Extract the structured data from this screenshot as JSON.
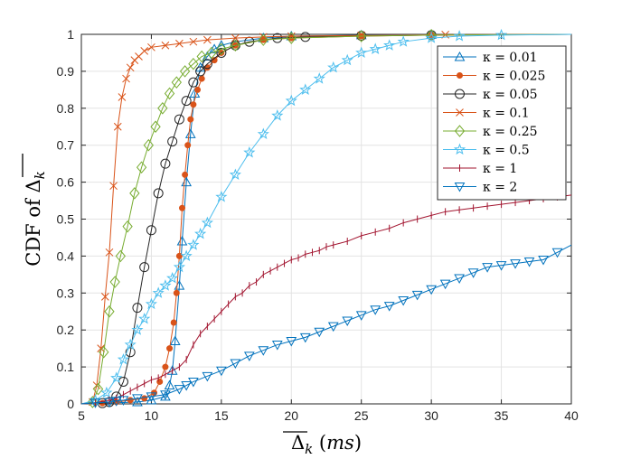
{
  "chart_data": {
    "type": "line",
    "title": "",
    "xlabel": "Δ_k (ms)",
    "ylabel": "CDF of Δ_k",
    "xlim": [
      5,
      40
    ],
    "ylim": [
      0,
      1
    ],
    "xticks": [
      5,
      10,
      15,
      20,
      25,
      30,
      35,
      40
    ],
    "yticks": [
      0,
      0.1,
      0.2,
      0.3,
      0.4,
      0.5,
      0.6,
      0.7,
      0.8,
      0.9,
      1
    ],
    "xtick_labels": [
      "5",
      "10",
      "15",
      "20",
      "25",
      "30",
      "35",
      "40"
    ],
    "ytick_labels": [
      "0",
      "0.1",
      "0.2",
      "0.3",
      "0.4",
      "0.5",
      "0.6",
      "0.7",
      "0.8",
      "0.9",
      "1"
    ],
    "grid": true,
    "legend_position": "top-right",
    "series": [
      {
        "name": "κ = 0.01",
        "color": "#0072BD",
        "marker": "triangle-up",
        "x": [
          5,
          9,
          10,
          11,
          11.3,
          11.5,
          11.7,
          12,
          12.2,
          12.5,
          12.8,
          13.1,
          13.5,
          14,
          14.5,
          15,
          16,
          18,
          20,
          25,
          30,
          40
        ],
        "y": [
          0,
          0.005,
          0.01,
          0.02,
          0.05,
          0.09,
          0.17,
          0.32,
          0.44,
          0.6,
          0.73,
          0.84,
          0.91,
          0.94,
          0.96,
          0.97,
          0.98,
          0.99,
          0.995,
          0.998,
          0.999,
          1.0
        ]
      },
      {
        "name": "κ = 0.025",
        "color": "#D95319",
        "marker": "dot",
        "x": [
          5,
          6.5,
          7.5,
          8.5,
          9.5,
          10.2,
          10.6,
          11,
          11.3,
          11.6,
          11.8,
          12,
          12.2,
          12.4,
          12.6,
          12.8,
          13,
          13.3,
          13.6,
          14,
          14.5,
          15,
          16,
          18,
          20,
          25,
          30,
          40
        ],
        "y": [
          0,
          0.002,
          0.005,
          0.01,
          0.015,
          0.03,
          0.06,
          0.1,
          0.15,
          0.22,
          0.3,
          0.4,
          0.53,
          0.62,
          0.7,
          0.77,
          0.81,
          0.85,
          0.88,
          0.91,
          0.93,
          0.95,
          0.97,
          0.985,
          0.99,
          0.995,
          0.998,
          1.0
        ]
      },
      {
        "name": "κ = 0.05",
        "color": "#262626",
        "marker": "circle",
        "x": [
          5,
          6.5,
          7,
          7.5,
          8,
          8.5,
          9,
          9.5,
          10,
          10.5,
          11,
          11.5,
          12,
          12.5,
          13,
          13.5,
          14,
          15,
          16,
          17,
          19,
          21,
          25,
          30,
          40
        ],
        "y": [
          0,
          0.002,
          0.005,
          0.02,
          0.06,
          0.14,
          0.26,
          0.37,
          0.47,
          0.57,
          0.65,
          0.71,
          0.77,
          0.82,
          0.87,
          0.9,
          0.92,
          0.95,
          0.97,
          0.98,
          0.99,
          0.993,
          0.996,
          0.998,
          1.0
        ]
      },
      {
        "name": "κ = 0.1",
        "color": "#D95319",
        "marker": "x",
        "x": [
          5,
          5.8,
          6.1,
          6.4,
          6.7,
          7,
          7.3,
          7.6,
          7.9,
          8.2,
          8.5,
          8.8,
          9.1,
          9.5,
          10,
          11,
          12,
          13,
          14,
          16,
          18,
          20,
          25,
          31,
          40
        ],
        "y": [
          0,
          0.005,
          0.05,
          0.15,
          0.29,
          0.41,
          0.59,
          0.75,
          0.83,
          0.88,
          0.91,
          0.93,
          0.94,
          0.955,
          0.965,
          0.97,
          0.975,
          0.98,
          0.985,
          0.99,
          0.993,
          0.995,
          0.997,
          0.999,
          1.0
        ]
      },
      {
        "name": "κ = 0.25",
        "color": "#77AC30",
        "marker": "diamond",
        "x": [
          5,
          5.8,
          6.2,
          6.6,
          7,
          7.4,
          7.8,
          8.3,
          8.8,
          9.3,
          9.8,
          10.3,
          10.8,
          11.3,
          11.8,
          12.4,
          13,
          13.6,
          14.3,
          15,
          16,
          18,
          20,
          25,
          30,
          40
        ],
        "y": [
          0,
          0.005,
          0.04,
          0.14,
          0.25,
          0.33,
          0.4,
          0.48,
          0.57,
          0.64,
          0.7,
          0.75,
          0.8,
          0.84,
          0.87,
          0.9,
          0.92,
          0.94,
          0.95,
          0.96,
          0.97,
          0.985,
          0.99,
          0.995,
          0.998,
          1.0
        ]
      },
      {
        "name": "κ = 0.5",
        "color": "#4DBEEE",
        "marker": "star",
        "x": [
          5,
          6,
          6.8,
          7.5,
          8,
          8.5,
          9,
          9.5,
          10,
          10.5,
          11,
          11.5,
          12,
          12.5,
          13,
          13.5,
          14,
          15,
          16,
          17,
          18,
          19,
          20,
          21,
          22,
          23,
          24,
          25,
          26,
          27,
          28,
          30,
          32,
          35,
          40
        ],
        "y": [
          0,
          0.01,
          0.03,
          0.07,
          0.12,
          0.16,
          0.2,
          0.23,
          0.27,
          0.3,
          0.32,
          0.34,
          0.37,
          0.4,
          0.43,
          0.46,
          0.49,
          0.56,
          0.62,
          0.68,
          0.73,
          0.78,
          0.82,
          0.85,
          0.88,
          0.91,
          0.93,
          0.95,
          0.96,
          0.97,
          0.98,
          0.99,
          0.995,
          0.998,
          1.0
        ]
      },
      {
        "name": "κ = 1",
        "color": "#A2142F",
        "marker": "plus",
        "x": [
          5,
          6,
          7,
          7.5,
          8,
          8.5,
          9,
          9.5,
          10,
          10.5,
          11,
          11.5,
          12,
          12.5,
          13,
          13.5,
          14,
          14.5,
          15,
          15.5,
          16,
          16.5,
          17,
          17.5,
          18,
          18.5,
          19,
          19.5,
          20,
          20.5,
          21,
          21.5,
          22,
          22.5,
          23,
          24,
          25,
          26,
          27,
          28,
          29,
          30,
          31,
          32,
          33,
          34,
          35,
          36,
          37,
          38,
          39,
          40
        ],
        "y": [
          0,
          0.003,
          0.01,
          0.015,
          0.025,
          0.035,
          0.045,
          0.055,
          0.065,
          0.07,
          0.08,
          0.09,
          0.1,
          0.12,
          0.16,
          0.19,
          0.21,
          0.23,
          0.25,
          0.27,
          0.29,
          0.3,
          0.32,
          0.33,
          0.35,
          0.36,
          0.37,
          0.38,
          0.39,
          0.395,
          0.405,
          0.41,
          0.415,
          0.425,
          0.43,
          0.44,
          0.455,
          0.465,
          0.475,
          0.49,
          0.5,
          0.51,
          0.52,
          0.525,
          0.53,
          0.535,
          0.54,
          0.545,
          0.55,
          0.555,
          0.56,
          0.565
        ]
      },
      {
        "name": "κ = 2",
        "color": "#0072BD",
        "marker": "triangle-down",
        "x": [
          5,
          6,
          7,
          7.5,
          8,
          9,
          10,
          11,
          12,
          12.5,
          13,
          14,
          15,
          16,
          17,
          18,
          19,
          20,
          21,
          22,
          23,
          24,
          25,
          26,
          27,
          28,
          29,
          30,
          31,
          32,
          33,
          34,
          35,
          36,
          37,
          38,
          39,
          40
        ],
        "y": [
          0,
          0.003,
          0.005,
          0.008,
          0.01,
          0.015,
          0.02,
          0.025,
          0.04,
          0.05,
          0.06,
          0.075,
          0.09,
          0.11,
          0.13,
          0.145,
          0.16,
          0.17,
          0.18,
          0.195,
          0.21,
          0.225,
          0.24,
          0.255,
          0.265,
          0.28,
          0.295,
          0.31,
          0.325,
          0.34,
          0.355,
          0.37,
          0.375,
          0.38,
          0.385,
          0.39,
          0.41,
          0.43
        ]
      }
    ]
  }
}
